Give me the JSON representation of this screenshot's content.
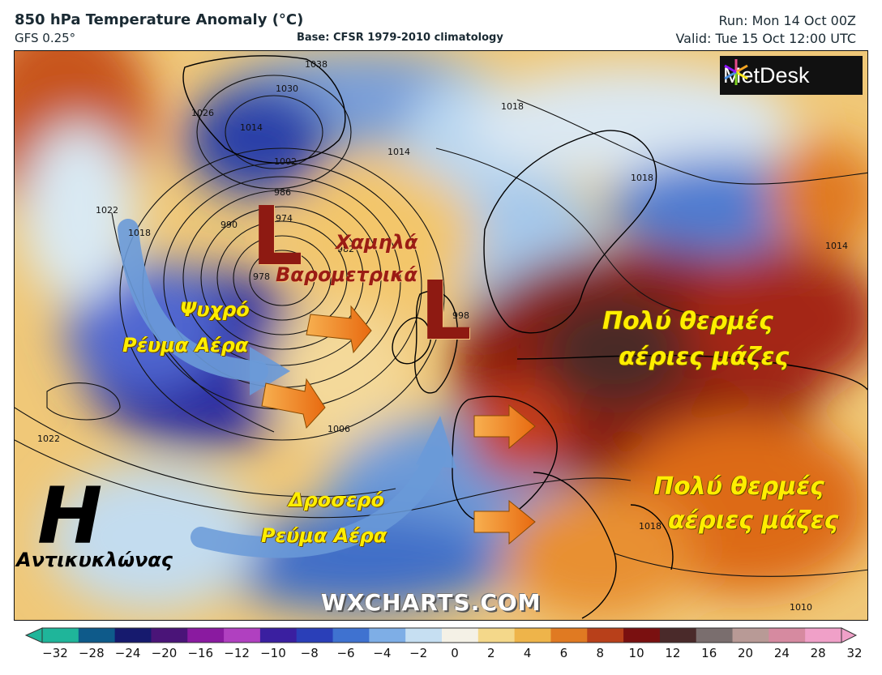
{
  "header": {
    "title": "850 hPa Temperature Anomaly (°C)",
    "model": "GFS 0.25°",
    "base": "Base: CFSR 1979-2010 climatology",
    "run": "Run: Mon 14 Oct 00Z",
    "valid": "Valid: Tue 15 Oct 12:00 UTC"
  },
  "logo": {
    "text": "MetDesk"
  },
  "watermark": "WXCHARTS.COM",
  "annotations": {
    "low_letter_1": "L",
    "low_letter_2": "L",
    "low_label_line1": "Χαμηλά",
    "low_label_line2": "Βαρομετρικά",
    "cold_line1": "Ψυχρό",
    "cold_line2": "Ρέυμα Αέρα",
    "cool_line1": "Δροσερό",
    "cool_line2": "Ρεύμα Αέρα",
    "hot1_line1": "Πολύ θερμές",
    "hot1_line2": "αέριες μάζες",
    "hot2_line1": "Πολύ θερμές",
    "hot2_line2": "αέριες μάζες",
    "high_letter": "H",
    "high_label": "Αντικυκλώνας"
  },
  "isobars": [
    "1038",
    "1030",
    "1026",
    "1022",
    "1018",
    "1014",
    "1002",
    "986",
    "974",
    "990",
    "978",
    "982",
    "998",
    "1022",
    "1018",
    "1014",
    "1006",
    "1022",
    "1018",
    "1014",
    "1018",
    "1010"
  ],
  "colorbar": {
    "ticks": [
      "−32",
      "−28",
      "−24",
      "−20",
      "−16",
      "−12",
      "−10",
      "−8",
      "−6",
      "−4",
      "−2",
      "0",
      "2",
      "4",
      "6",
      "8",
      "10",
      "12",
      "16",
      "20",
      "24",
      "28",
      "32"
    ],
    "colors": [
      "#1fb59a",
      "#0e5a8a",
      "#161a6e",
      "#4a1478",
      "#8a1aa0",
      "#b040c0",
      "#3a1fa0",
      "#2a3fb8",
      "#3f72d0",
      "#7eaee6",
      "#c6dff2",
      "#f4f1e6",
      "#f4d88a",
      "#eeb44a",
      "#e07a22",
      "#b8401a",
      "#7a1010",
      "#4a2a2a",
      "#7a6e6e",
      "#b89a96",
      "#d68aa0",
      "#f0a0c8"
    ]
  }
}
